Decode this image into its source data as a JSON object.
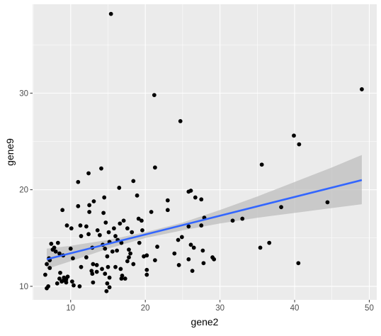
{
  "chart_data": {
    "type": "scatter",
    "title": "",
    "xlabel": "gene2",
    "ylabel": "gene9",
    "xlim": [
      4.9,
      51.0
    ],
    "ylim": [
      8.6,
      39.2
    ],
    "xticks": [
      10,
      20,
      30,
      40,
      50
    ],
    "xtick_labels": [
      "10",
      "20",
      "30",
      "40",
      "50"
    ],
    "yticks": [
      10,
      20,
      30
    ],
    "ytick_labels": [
      "10",
      "20",
      "30"
    ],
    "grid": true,
    "legend": "none",
    "colors": {
      "panel": "#ebebeb",
      "grid_major": "#ffffff",
      "point": "#000000",
      "fit_line": "#3366ff",
      "ribbon": "#bdbdbd",
      "axis_text": "#4d4d4d",
      "axis_title": "#000000"
    },
    "fit": {
      "method": "lm",
      "start": [
        6.8,
        12.8
      ],
      "end": [
        49.0,
        21.0
      ],
      "band_lower": [
        [
          6.8,
          11.8
        ],
        [
          10,
          12.6
        ],
        [
          15,
          13.9
        ],
        [
          20,
          15.0
        ],
        [
          25,
          15.8
        ],
        [
          30,
          16.5
        ],
        [
          35,
          17.1
        ],
        [
          40,
          17.6
        ],
        [
          45,
          18.1
        ],
        [
          49,
          18.5
        ]
      ],
      "band_upper": [
        [
          6.8,
          13.9
        ],
        [
          10,
          14.2
        ],
        [
          15,
          14.8
        ],
        [
          20,
          15.6
        ],
        [
          25,
          16.6
        ],
        [
          30,
          17.9
        ],
        [
          35,
          19.3
        ],
        [
          40,
          20.8
        ],
        [
          45,
          22.3
        ],
        [
          49,
          23.6
        ]
      ]
    },
    "points": [
      [
        15.4,
        38.2
      ],
      [
        49.0,
        30.4
      ],
      [
        21.2,
        29.8
      ],
      [
        24.7,
        27.1
      ],
      [
        39.9,
        25.6
      ],
      [
        40.6,
        24.7
      ],
      [
        35.6,
        22.6
      ],
      [
        14.1,
        22.2
      ],
      [
        21.3,
        22.3
      ],
      [
        12.4,
        21.7
      ],
      [
        18.4,
        20.9
      ],
      [
        11.0,
        20.8
      ],
      [
        16.5,
        20.2
      ],
      [
        26.1,
        19.9
      ],
      [
        25.8,
        19.8
      ],
      [
        18.9,
        19.4
      ],
      [
        27.5,
        19.0
      ],
      [
        26.7,
        19.2
      ],
      [
        14.5,
        19.2
      ],
      [
        23.0,
        18.9
      ],
      [
        13.1,
        18.8
      ],
      [
        38.2,
        18.2
      ],
      [
        44.4,
        18.7
      ],
      [
        12.5,
        18.4
      ],
      [
        11.0,
        18.3
      ],
      [
        8.9,
        17.9
      ],
      [
        23.0,
        17.9
      ],
      [
        14.4,
        17.6
      ],
      [
        12.5,
        17.7
      ],
      [
        20.8,
        17.7
      ],
      [
        27.9,
        17.1
      ],
      [
        33.0,
        17.0
      ],
      [
        19.1,
        17.0
      ],
      [
        17.1,
        16.8
      ],
      [
        19.5,
        16.8
      ],
      [
        31.7,
        16.8
      ],
      [
        14.7,
        16.6
      ],
      [
        16.6,
        16.5
      ],
      [
        11.3,
        16.3
      ],
      [
        12.1,
        16.2
      ],
      [
        10.1,
        16.0
      ],
      [
        9.5,
        16.3
      ],
      [
        15.8,
        16.0
      ],
      [
        17.6,
        16.0
      ],
      [
        25.8,
        16.2
      ],
      [
        27.5,
        16.3
      ],
      [
        13.6,
        15.8
      ],
      [
        18.2,
        15.6
      ],
      [
        15.1,
        15.6
      ],
      [
        19.6,
        15.8
      ],
      [
        12.4,
        15.4
      ],
      [
        13.9,
        15.3
      ],
      [
        11.4,
        15.2
      ],
      [
        16.0,
        15.2
      ],
      [
        24.9,
        15.1
      ],
      [
        24.4,
        14.8
      ],
      [
        15.2,
        14.6
      ],
      [
        16.3,
        14.8
      ],
      [
        16.8,
        14.5
      ],
      [
        8.3,
        14.5
      ],
      [
        19.2,
        14.5
      ],
      [
        7.4,
        14.4
      ],
      [
        21.6,
        14.1
      ],
      [
        26.1,
        14.3
      ],
      [
        14.3,
        14.3
      ],
      [
        12.9,
        14.0
      ],
      [
        26.5,
        14.0
      ],
      [
        10.0,
        13.9
      ],
      [
        14.6,
        13.9
      ],
      [
        17.8,
        13.8
      ],
      [
        7.6,
        13.8
      ],
      [
        35.4,
        14.0
      ],
      [
        36.6,
        14.5
      ],
      [
        15.6,
        13.6
      ],
      [
        16.2,
        13.7
      ],
      [
        18.0,
        13.4
      ],
      [
        8.5,
        13.4
      ],
      [
        9.0,
        13.2
      ],
      [
        14.9,
        13.1
      ],
      [
        19.8,
        13.1
      ],
      [
        12.1,
        13.0
      ],
      [
        17.8,
        13.0
      ],
      [
        20.2,
        13.2
      ],
      [
        10.3,
        12.9
      ],
      [
        7.1,
        12.9
      ],
      [
        27.7,
        13.7
      ],
      [
        29.0,
        13.0
      ],
      [
        29.2,
        12.8
      ],
      [
        21.3,
        12.7
      ],
      [
        23.9,
        13.4
      ],
      [
        25.8,
        12.8
      ],
      [
        17.6,
        12.6
      ],
      [
        7.2,
        12.7
      ],
      [
        18.4,
        12.3
      ],
      [
        13.0,
        12.3
      ],
      [
        13.5,
        12.2
      ],
      [
        27.8,
        12.4
      ],
      [
        6.8,
        12.3
      ],
      [
        40.5,
        12.4
      ],
      [
        24.5,
        12.2
      ],
      [
        16.0,
        12.0
      ],
      [
        15.0,
        12.0
      ],
      [
        11.4,
        12.0
      ],
      [
        7.2,
        11.9
      ],
      [
        16.7,
        11.8
      ],
      [
        14.2,
        11.8
      ],
      [
        20.2,
        11.7
      ],
      [
        12.8,
        11.6
      ],
      [
        13.5,
        11.5
      ],
      [
        26.3,
        11.6
      ],
      [
        14.6,
        11.3
      ],
      [
        12.9,
        11.3
      ],
      [
        8.6,
        11.4
      ],
      [
        20.2,
        11.2
      ],
      [
        16.9,
        11.1
      ],
      [
        9.6,
        11.0
      ],
      [
        6.6,
        11.2
      ],
      [
        9.1,
        10.9
      ],
      [
        9.4,
        10.7
      ],
      [
        17.3,
        10.8
      ],
      [
        8.5,
        10.8
      ],
      [
        15.2,
        10.9
      ],
      [
        16.8,
        10.8
      ],
      [
        8.8,
        10.5
      ],
      [
        10.2,
        10.5
      ],
      [
        8.2,
        10.3
      ],
      [
        9.4,
        10.4
      ],
      [
        14.9,
        10.3
      ],
      [
        13.0,
        10.4
      ],
      [
        10.4,
        10.1
      ],
      [
        11.2,
        10.0
      ],
      [
        7.0,
        10.0
      ],
      [
        15.2,
        9.9
      ],
      [
        6.8,
        9.8
      ],
      [
        14.8,
        9.5
      ],
      [
        9.0,
        10.6
      ],
      [
        7.8,
        14.0
      ],
      [
        8.0,
        13.6
      ]
    ]
  }
}
